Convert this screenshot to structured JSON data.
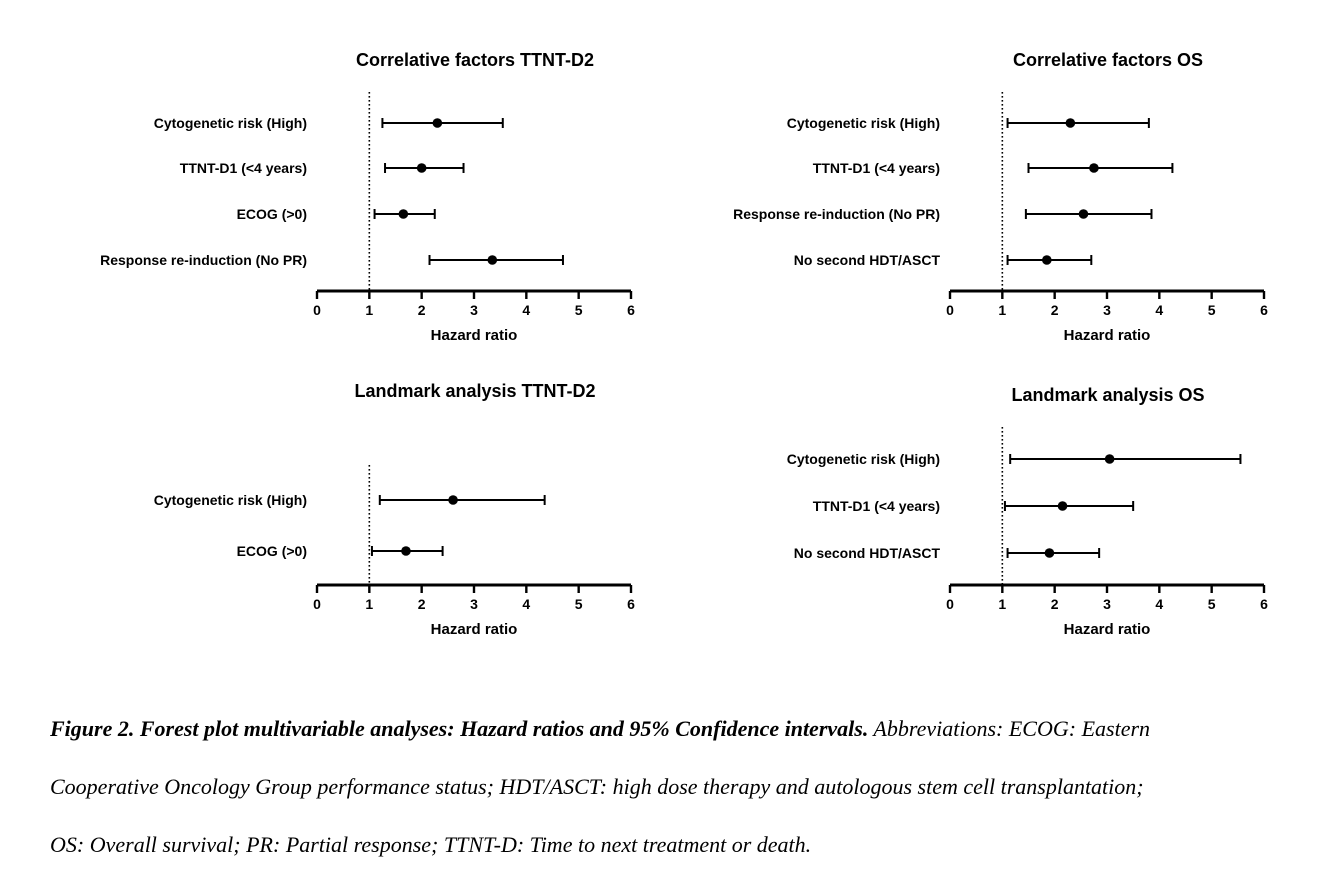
{
  "chart_data": [
    {
      "type": "forest",
      "title": "Correlative factors TTNT-D2",
      "xlabel": "Hazard ratio",
      "xlim": [
        0,
        6
      ],
      "xticks": [
        "0",
        "1",
        "2",
        "3",
        "4",
        "5",
        "6"
      ],
      "reference_line": 1,
      "rows": [
        {
          "label": "Cytogenetic risk (High)",
          "hr": 2.3,
          "lower": 1.25,
          "upper": 3.55
        },
        {
          "label": "TTNT-D1 (<4 years)",
          "hr": 2.0,
          "lower": 1.3,
          "upper": 2.8
        },
        {
          "label": "ECOG (>0)",
          "hr": 1.65,
          "lower": 1.1,
          "upper": 2.25
        },
        {
          "label": "Response re-induction (No PR)",
          "hr": 3.35,
          "lower": 2.15,
          "upper": 4.7
        }
      ]
    },
    {
      "type": "forest",
      "title": "Correlative factors OS",
      "xlabel": "Hazard ratio",
      "xlim": [
        0,
        6
      ],
      "xticks": [
        "0",
        "1",
        "2",
        "3",
        "4",
        "5",
        "6"
      ],
      "reference_line": 1,
      "rows": [
        {
          "label": "Cytogenetic risk (High)",
          "hr": 2.3,
          "lower": 1.1,
          "upper": 3.8
        },
        {
          "label": "TTNT-D1 (<4 years)",
          "hr": 2.75,
          "lower": 1.5,
          "upper": 4.25
        },
        {
          "label": "Response re-induction (No PR)",
          "hr": 2.55,
          "lower": 1.45,
          "upper": 3.85
        },
        {
          "label": "No second HDT/ASCT",
          "hr": 1.85,
          "lower": 1.1,
          "upper": 2.7
        }
      ]
    },
    {
      "type": "forest",
      "title": "Landmark analysis TTNT-D2",
      "xlabel": "Hazard ratio",
      "xlim": [
        0,
        6
      ],
      "xticks": [
        "0",
        "1",
        "2",
        "3",
        "4",
        "5",
        "6"
      ],
      "reference_line": 1,
      "rows": [
        {
          "label": "Cytogenetic risk (High)",
          "hr": 2.6,
          "lower": 1.2,
          "upper": 4.35
        },
        {
          "label": "ECOG (>0)",
          "hr": 1.7,
          "lower": 1.05,
          "upper": 2.4
        }
      ]
    },
    {
      "type": "forest",
      "title": "Landmark analysis OS",
      "xlabel": "Hazard ratio",
      "xlim": [
        0,
        6
      ],
      "xticks": [
        "0",
        "1",
        "2",
        "3",
        "4",
        "5",
        "6"
      ],
      "reference_line": 1,
      "rows": [
        {
          "label": "Cytogenetic risk (High)",
          "hr": 3.05,
          "lower": 1.15,
          "upper": 5.55
        },
        {
          "label": "TTNT-D1 (<4 years)",
          "hr": 2.15,
          "lower": 1.05,
          "upper": 3.5
        },
        {
          "label": "No second HDT/ASCT",
          "hr": 1.9,
          "lower": 1.1,
          "upper": 2.85
        }
      ]
    }
  ],
  "caption": {
    "bold": "Figure 2. Forest plot multivariable analyses: Hazard ratios and 95% Confidence intervals.",
    "line1_rest": " Abbreviations: ECOG: Eastern",
    "line2": "Cooperative Oncology Group performance status; HDT/ASCT: high dose therapy and autologous stem cell transplantation;",
    "line3": "OS: Overall survival; PR: Partial response; TTNT-D: Time to next treatment or death."
  },
  "colors": {
    "ink": "#000000",
    "background": "#ffffff"
  }
}
